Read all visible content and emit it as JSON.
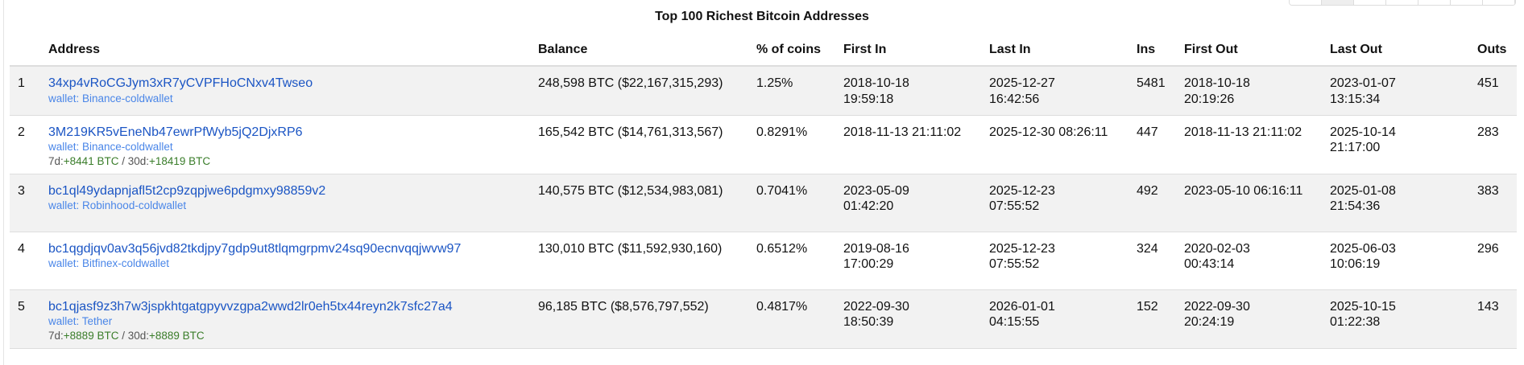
{
  "title": "Top 100 Richest Bitcoin Addresses",
  "headers": {
    "address": "Address",
    "balance": "Balance",
    "pct": "% of coins",
    "first_in": "First In",
    "last_in": "Last In",
    "ins": "Ins",
    "first_out": "First Out",
    "last_out": "Last Out",
    "outs": "Outs"
  },
  "rows": [
    {
      "rank": "1",
      "address": "34xp4vRoCGJym3xR7yCVPFHoCNxv4Twseo",
      "wallet": "wallet: Binance-coldwallet",
      "balance_btc": "248,598 BTC",
      "balance_usd": "($22,167,315,293)",
      "pct": "1.25%",
      "first_in_d": "2018-10-18",
      "first_in_t": "19:59:18",
      "last_in_d": "2025-12-27",
      "last_in_t": "16:42:56",
      "ins": "5481",
      "first_out_d": "2018-10-18",
      "first_out_t": "20:19:26",
      "last_out_d": "2023-01-07",
      "last_out_t": "13:15:34",
      "outs": "451"
    },
    {
      "rank": "2",
      "address": "3M219KR5vEneNb47ewrPfWyb5jQ2DjxRP6",
      "wallet": "wallet: Binance-coldwallet",
      "chg_7d_label": "7d:",
      "chg_7d": "+8441 BTC",
      "chg_sep": " / ",
      "chg_30d_label": "30d:",
      "chg_30d": "+18419 BTC",
      "balance_btc": "165,542 BTC",
      "balance_usd": "($14,761,313,567)",
      "pct": "0.8291%",
      "first_in_d": "2018-11-13",
      "first_in_t": "21:11:02",
      "last_in_d": "2025-12-30",
      "last_in_t": "08:26:11",
      "ins": "447",
      "first_out_d": "2018-11-13",
      "first_out_t": "21:11:02",
      "last_out_d": "2025-10-14",
      "last_out_t": "21:17:00",
      "outs": "283"
    },
    {
      "rank": "3",
      "address": "bc1ql49ydapnjafl5t2cp9zqpjwe6pdgmxy98859v2",
      "wallet": "wallet: Robinhood-coldwallet",
      "balance_btc": "140,575 BTC",
      "balance_usd": "($12,534,983,081)",
      "pct": "0.7041%",
      "first_in_d": "2023-05-09",
      "first_in_t": "01:42:20",
      "last_in_d": "2025-12-23",
      "last_in_t": "07:55:52",
      "ins": "492",
      "first_out_d": "2023-05-10",
      "first_out_t": "06:16:11",
      "last_out_d": "2025-01-08",
      "last_out_t": "21:54:36",
      "outs": "383"
    },
    {
      "rank": "4",
      "address": "bc1qgdjqv0av3q56jvd82tkdjpy7gdp9ut8tlqmgrpmv24sq90ecnvqqjwvw97",
      "wallet": "wallet: Bitfinex-coldwallet",
      "balance_btc": "130,010 BTC",
      "balance_usd": "($11,592,930,160)",
      "pct": "0.6512%",
      "first_in_d": "2019-08-16",
      "first_in_t": "17:00:29",
      "last_in_d": "2025-12-23",
      "last_in_t": "07:55:52",
      "ins": "324",
      "first_out_d": "2020-02-03",
      "first_out_t": "00:43:14",
      "last_out_d": "2025-06-03",
      "last_out_t": "10:06:19",
      "outs": "296"
    },
    {
      "rank": "5",
      "address": "bc1qjasf9z3h7w3jspkhtgatgpyvvzgpa2wwd2lr0eh5tx44reyn2k7sfc27a4",
      "wallet": "wallet: Tether",
      "chg_7d_label": "7d:",
      "chg_7d": "+8889 BTC",
      "chg_sep": " / ",
      "chg_30d_label": "30d:",
      "chg_30d": "+8889 BTC",
      "balance_btc": "96,185 BTC",
      "balance_usd": "($8,576,797,552)",
      "pct": "0.4817%",
      "first_in_d": "2022-09-30",
      "first_in_t": "18:50:39",
      "last_in_d": "2026-01-01",
      "last_in_t": "04:15:55",
      "ins": "152",
      "first_out_d": "2022-09-30",
      "first_out_t": "20:24:19",
      "last_out_d": "2025-10-15",
      "last_out_t": "01:22:38",
      "outs": "143"
    }
  ]
}
